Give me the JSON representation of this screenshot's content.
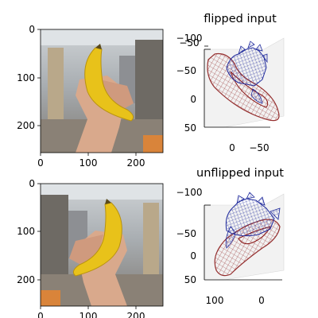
{
  "chart_data": [
    {
      "type": "image",
      "image": "hand holding banana (flipped)",
      "xticks": [
        "0",
        "100",
        "200"
      ],
      "yticks": [
        "0",
        "100",
        "200"
      ],
      "xlim": [
        0,
        256
      ],
      "ylim": [
        256,
        0
      ]
    },
    {
      "type": "3d-mesh",
      "title": "flipped input",
      "meshes": [
        {
          "color": "#8b1a1a",
          "label": "object mesh (banana)"
        },
        {
          "color": "#1f2a9c",
          "label": "hand mesh"
        }
      ],
      "xticks": [
        "0",
        "−50"
      ],
      "yticks": [
        "−50",
        "0",
        "50"
      ],
      "zticks": [
        "−100",
        "−50"
      ]
    },
    {
      "type": "image",
      "image": "hand holding banana (unflipped)",
      "xticks": [
        "0",
        "100",
        "200"
      ],
      "yticks": [
        "0",
        "100",
        "200"
      ],
      "xlim": [
        0,
        256
      ],
      "ylim": [
        256,
        0
      ]
    },
    {
      "type": "3d-mesh",
      "title": "unflipped input",
      "meshes": [
        {
          "color": "#8b1a1a",
          "label": "object mesh (banana)"
        },
        {
          "color": "#1f2a9c",
          "label": "hand mesh"
        }
      ],
      "xticks": [
        "100",
        "0"
      ],
      "yticks": [
        "−50",
        "0",
        "50"
      ],
      "zticks": [
        "−100"
      ]
    }
  ],
  "colors": {
    "banana": "#e8c21a",
    "skin": "#d9a98c",
    "object_mesh": "#8b1a1a",
    "hand_mesh": "#1f2a9c",
    "pane": "#f2f2f2"
  }
}
